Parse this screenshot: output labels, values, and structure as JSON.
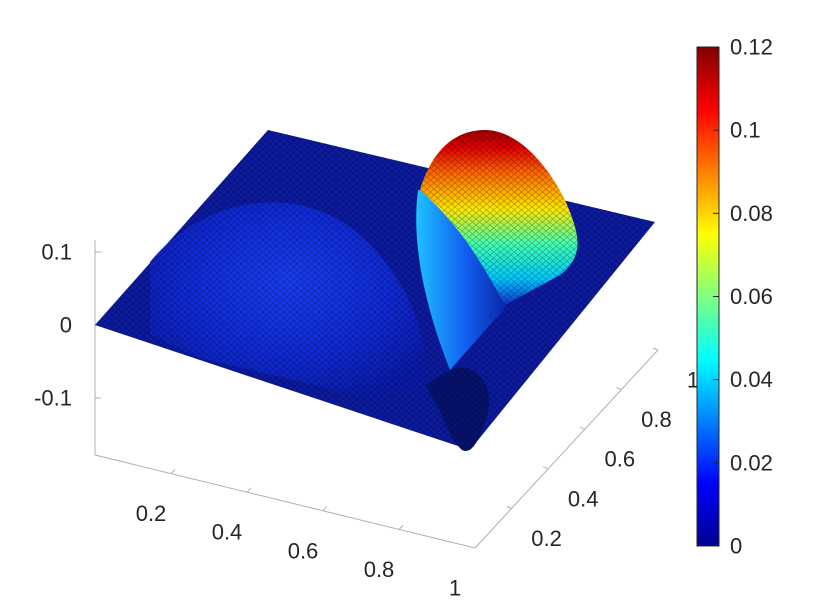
{
  "chart_data": {
    "type": "surface",
    "title": "",
    "xlabel": "",
    "ylabel": "",
    "zlabel": "",
    "x_ticks": [
      "0.2",
      "0.4",
      "0.6",
      "0.8",
      "1"
    ],
    "y_ticks": [
      "0.2",
      "0.4",
      "0.6",
      "0.8",
      "1"
    ],
    "z_ticks": [
      "-0.1",
      "0",
      "0.1"
    ],
    "xlim": [
      0,
      1
    ],
    "ylim": [
      0,
      1
    ],
    "zlim": [
      -0.18,
      0.12
    ],
    "colormap": "jet",
    "colorbar": {
      "limits": [
        0,
        0.12
      ],
      "ticks": [
        "0",
        "0.02",
        "0.04",
        "0.06",
        "0.08",
        "0.1",
        "0.12"
      ],
      "position": "right"
    },
    "mesh": "triangulated",
    "surface_features": [
      {
        "name": "ridge",
        "location": "x near 0.8",
        "z_max": 0.12
      },
      {
        "name": "broad dome",
        "location": "x 0.2 to 0.6, y 0.3 to 0.9",
        "z_max": 0.045
      },
      {
        "name": "trough",
        "location": "x near 0.8, y near 0.15",
        "z_min": -0.17
      }
    ]
  }
}
